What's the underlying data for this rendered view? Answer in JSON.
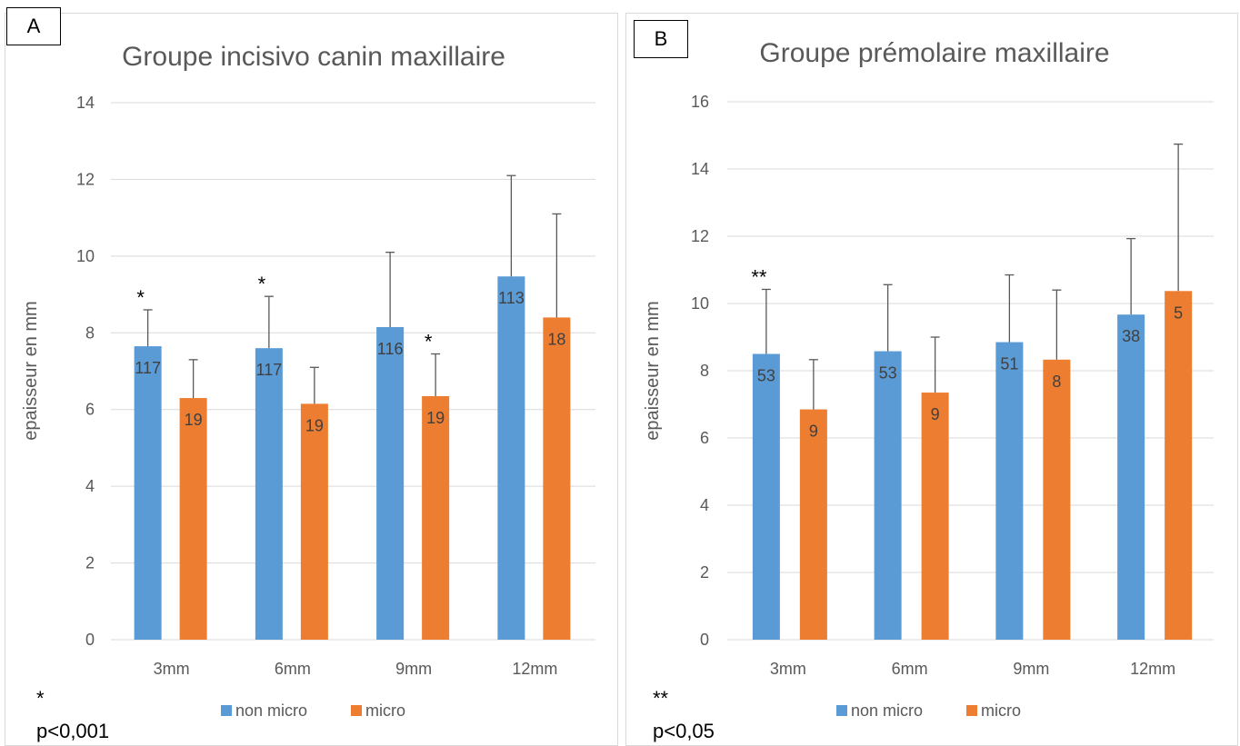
{
  "chart_data": [
    {
      "type": "bar",
      "panel_tag": "A",
      "title": "Groupe incisivo canin maxillaire",
      "xlabel": "",
      "ylabel": "epaisseur en mm",
      "categories": [
        "3mm",
        "6mm",
        "9mm",
        "12mm"
      ],
      "ylim": [
        0,
        14
      ],
      "yticks": [
        0,
        2,
        4,
        6,
        8,
        10,
        12,
        14
      ],
      "grid": true,
      "legend_position": "bottom",
      "series": [
        {
          "name": "non micro",
          "color": "#5b9bd5",
          "values": [
            7.65,
            7.6,
            8.15,
            9.47
          ],
          "error": [
            0.95,
            1.35,
            1.95,
            2.63
          ],
          "labels": [
            "117",
            "117",
            "116",
            "113"
          ]
        },
        {
          "name": "micro",
          "color": "#ed7d31",
          "values": [
            6.3,
            6.15,
            6.35,
            8.4
          ],
          "error": [
            1.0,
            0.95,
            1.1,
            2.7
          ],
          "labels": [
            "19",
            "19",
            "19",
            "18"
          ]
        }
      ],
      "significance": [
        {
          "category": 0,
          "series": 0,
          "mark": "*"
        },
        {
          "category": 1,
          "series": 0,
          "mark": "*"
        },
        {
          "category": 2,
          "series": 1,
          "mark": "*"
        }
      ],
      "footnote_mark": "*",
      "footnote_text": "p<0,001"
    },
    {
      "type": "bar",
      "panel_tag": "B",
      "title": "Groupe prémolaire maxillaire",
      "xlabel": "",
      "ylabel": "epaisseur en mm",
      "categories": [
        "3mm",
        "6mm",
        "9mm",
        "12mm"
      ],
      "ylim": [
        0,
        16
      ],
      "yticks": [
        0,
        2,
        4,
        6,
        8,
        10,
        12,
        14,
        16
      ],
      "grid": true,
      "legend_position": "bottom",
      "series": [
        {
          "name": "non micro",
          "color": "#5b9bd5",
          "values": [
            8.5,
            8.58,
            8.85,
            9.67
          ],
          "error": [
            1.92,
            1.98,
            2.0,
            2.26
          ],
          "labels": [
            "53",
            "53",
            "51",
            "38"
          ]
        },
        {
          "name": "micro",
          "color": "#ed7d31",
          "values": [
            6.85,
            7.35,
            8.33,
            10.37
          ],
          "error": [
            1.48,
            1.65,
            2.07,
            4.37
          ],
          "labels": [
            "9",
            "9",
            "8",
            "5"
          ]
        }
      ],
      "significance": [
        {
          "category": 0,
          "series": 0,
          "mark": "**"
        }
      ],
      "footnote_mark": "**",
      "footnote_text": "p<0,05"
    }
  ]
}
